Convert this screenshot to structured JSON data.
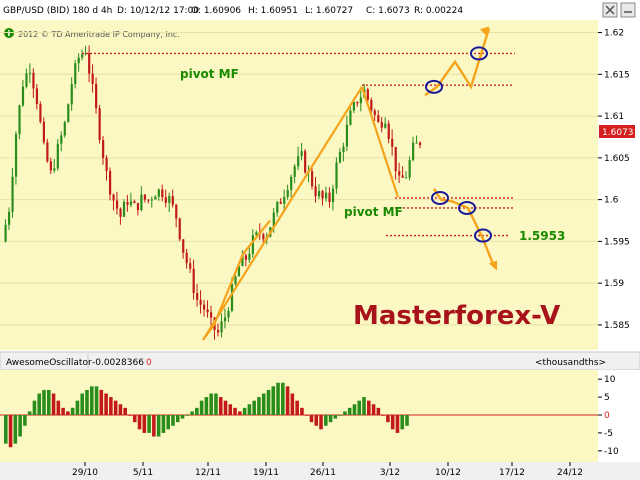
{
  "header": {
    "symbol": "GBP/USD (BID) 180 d 4h",
    "date": "D: 10/12/12 17:00",
    "open": "O: 1.60906",
    "high": "H: 1.60951",
    "low": "L: 1.60727",
    "close": "C: 1.6073",
    "range": "R: 0.00224",
    "copyright": "2012 © TD Ameritrade IP Company, Inc."
  },
  "annotations": {
    "pivot_upper": "pivot MF",
    "pivot_lower": "pivot MF",
    "target_level": "1.5953",
    "brand": "Masterforex-V"
  },
  "oscillator": {
    "name": "AwesomeOscillator",
    "value": "-0.0028366",
    "marker": "0",
    "units": "<thousandths>"
  },
  "colors": {
    "chart_bg": "#fbf8c4",
    "up_candle": "#2a8c1a",
    "down_candle": "#c21a1a",
    "trend": "#f5a31a",
    "pivot": "#d42020",
    "ellipse": "#1a1a9a",
    "last_price_bg": "#d42020",
    "brand": "#a8121b"
  },
  "icons": {
    "info": "info-icon",
    "window_close": "close-icon",
    "window_minimize": "minimize-icon"
  },
  "chart_data": [
    {
      "type": "candlestick",
      "x_ticks": [
        "29/10",
        "5/11",
        "12/11",
        "19/11",
        "26/11",
        "3/12",
        "10/12",
        "17/12",
        "24/12"
      ],
      "y_ticks": [
        "1.62",
        "1.615",
        "1.61",
        "1.605",
        "1.6",
        "1.595",
        "1.59",
        "1.585"
      ],
      "ylim": [
        1.582,
        1.6215
      ],
      "last_price": "1.6073",
      "price_path": [
        [
          0,
          1.595
        ],
        [
          1,
          1.599
        ],
        [
          2,
          1.608
        ],
        [
          3,
          1.614
        ],
        [
          4,
          1.616
        ],
        [
          5,
          1.612
        ],
        [
          6,
          1.606
        ],
        [
          7,
          1.603
        ],
        [
          8,
          1.606
        ],
        [
          9,
          1.609
        ],
        [
          10,
          1.614
        ],
        [
          11,
          1.617
        ],
        [
          12,
          1.618
        ],
        [
          13,
          1.613
        ],
        [
          14,
          1.608
        ],
        [
          15,
          1.603
        ],
        [
          16,
          1.6
        ],
        [
          17,
          1.598
        ],
        [
          18,
          1.6
        ],
        [
          19,
          1.599
        ],
        [
          20,
          1.6
        ],
        [
          21,
          1.6
        ],
        [
          22,
          1.601
        ],
        [
          23,
          1.601
        ],
        [
          24,
          1.6
        ],
        [
          25,
          1.598
        ],
        [
          26,
          1.594
        ],
        [
          27,
          1.591
        ],
        [
          28,
          1.588
        ],
        [
          29,
          1.587
        ],
        [
          30,
          1.585
        ],
        [
          31,
          1.584
        ],
        [
          32,
          1.586
        ],
        [
          33,
          1.589
        ],
        [
          34,
          1.592
        ],
        [
          35,
          1.593
        ],
        [
          36,
          1.595
        ],
        [
          37,
          1.596
        ],
        [
          38,
          1.596
        ],
        [
          39,
          1.598
        ],
        [
          40,
          1.6
        ],
        [
          41,
          1.602
        ],
        [
          42,
          1.604
        ],
        [
          43,
          1.605
        ],
        [
          44,
          1.603
        ],
        [
          45,
          1.601
        ],
        [
          46,
          1.6
        ],
        [
          47,
          1.6
        ],
        [
          48,
          1.604
        ],
        [
          49,
          1.607
        ],
        [
          50,
          1.61
        ],
        [
          51,
          1.612
        ],
        [
          52,
          1.613
        ],
        [
          53,
          1.611
        ],
        [
          54,
          1.609
        ],
        [
          55,
          1.61
        ],
        [
          56,
          1.606
        ],
        [
          57,
          1.602
        ],
        [
          58,
          1.603
        ],
        [
          59,
          1.606
        ],
        [
          60,
          1.607
        ]
      ],
      "pivot_levels": [
        1.6175,
        1.6137,
        1.6002,
        1.599,
        1.5957
      ],
      "trend_path_up": [
        [
          1.5832,
          1.6135
        ]
      ],
      "projection_up": [
        1.6135,
        1.6165,
        1.6205
      ],
      "projection_down": [
        1.6,
        1.599,
        1.5953,
        1.592
      ]
    },
    {
      "type": "bar",
      "name": "AwesomeOscillator",
      "y_ticks": [
        "10",
        "5",
        "0",
        "-5",
        "-10"
      ],
      "ylim": [
        -12,
        12
      ],
      "values": [
        -8,
        -9,
        -8,
        -6,
        -3,
        1,
        4,
        6,
        7,
        7,
        6,
        4,
        2,
        1,
        2,
        4,
        6,
        7,
        8,
        8,
        7,
        6,
        5,
        4,
        3,
        2,
        0,
        -2,
        -4,
        -5,
        -5,
        -6,
        -6,
        -5,
        -4,
        -3,
        -2,
        -1,
        0,
        1,
        2,
        4,
        5,
        6,
        6,
        5,
        4,
        3,
        2,
        1,
        2,
        3,
        4,
        5,
        6,
        7,
        8,
        9,
        9,
        8,
        6,
        4,
        2,
        0,
        -2,
        -3,
        -4,
        -3,
        -2,
        -1,
        0,
        1,
        2,
        3,
        4,
        5,
        4,
        3,
        2,
        0,
        -2,
        -4,
        -5,
        -4,
        -3
      ]
    }
  ]
}
